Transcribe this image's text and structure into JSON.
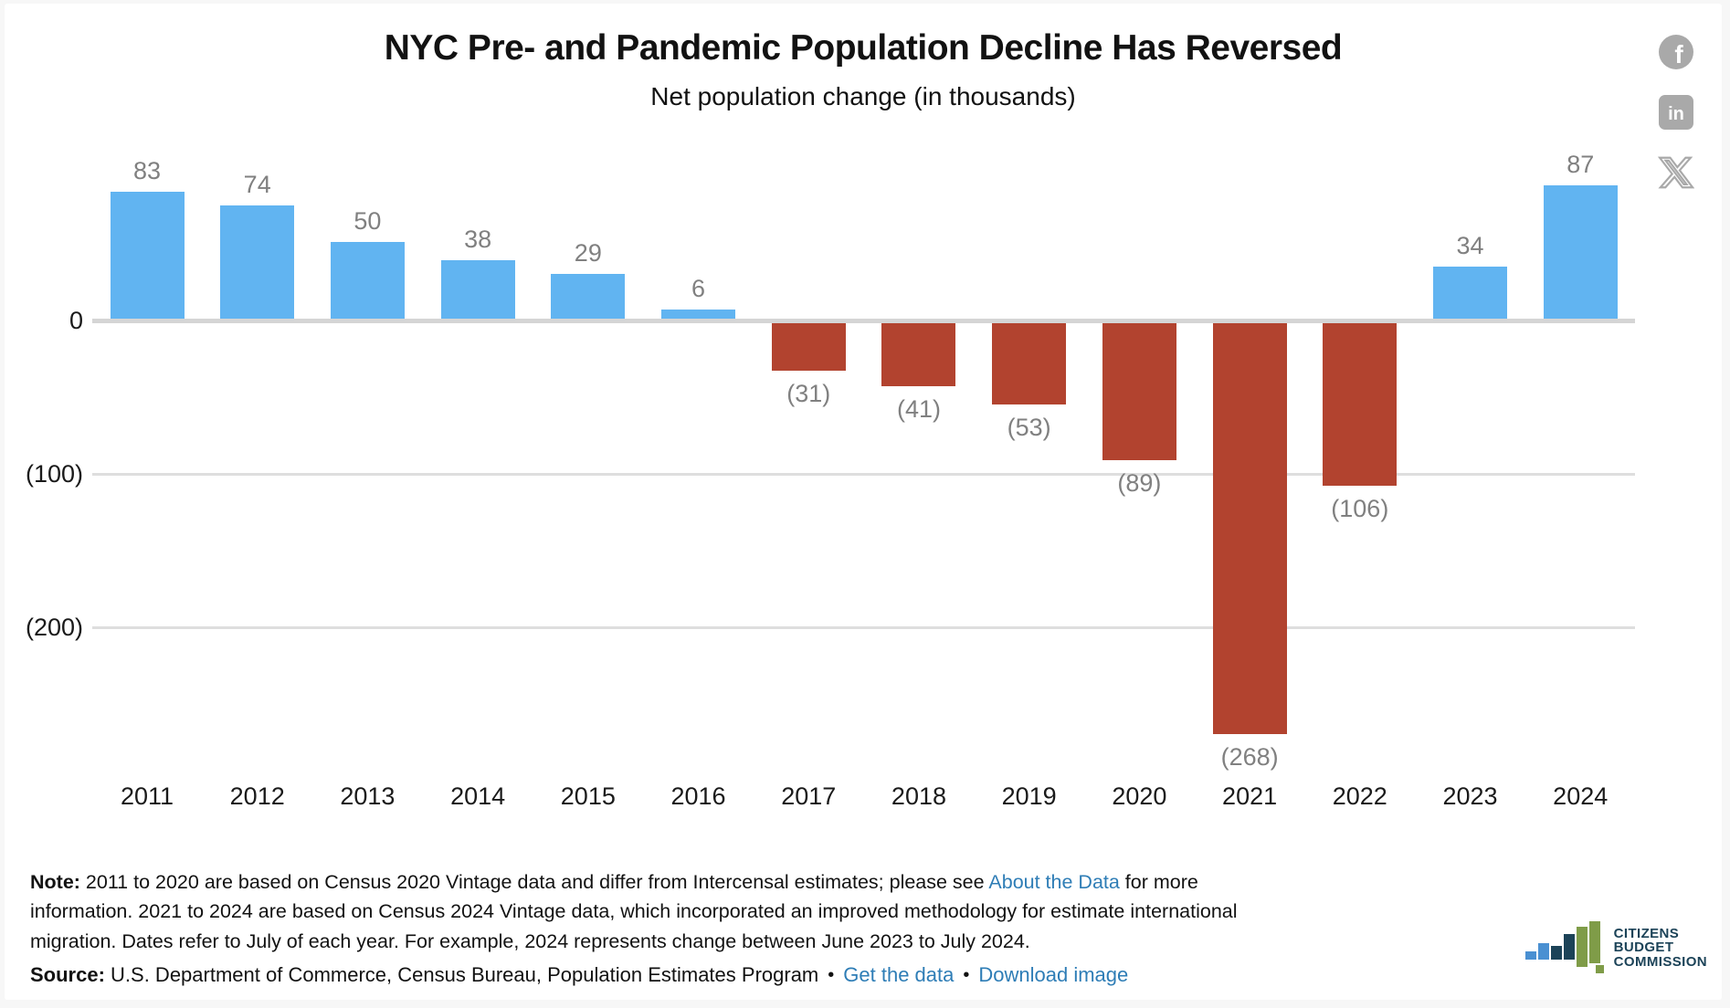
{
  "page": {
    "title": "NYC Pre- and Pandemic Population Decline Has Reversed",
    "subtitle": "Net population change (in thousands)"
  },
  "social": {
    "facebook_icon": "facebook-share-icon",
    "linkedin_icon": "linkedin-share-icon",
    "x_icon": "x-share-icon",
    "icon_color": "#a9a9a9"
  },
  "chart_data": {
    "type": "bar",
    "title": "NYC Pre- and Pandemic Population Decline Has Reversed",
    "subtitle": "Net population change (in thousands)",
    "categories": [
      "2011",
      "2012",
      "2013",
      "2014",
      "2015",
      "2016",
      "2017",
      "2018",
      "2019",
      "2020",
      "2021",
      "2022",
      "2023",
      "2024"
    ],
    "values": [
      83,
      74,
      50,
      38,
      29,
      6,
      -31,
      -41,
      -53,
      -89,
      -268,
      -106,
      34,
      87
    ],
    "labels": [
      "83",
      "74",
      "50",
      "38",
      "29",
      "6",
      "(31)",
      "(41)",
      "(53)",
      "(89)",
      "(268)",
      "(106)",
      "34",
      "87"
    ],
    "y_ticks": [
      {
        "value": 0,
        "label": "0"
      },
      {
        "value": -100,
        "label": "(100)"
      },
      {
        "value": -200,
        "label": "(200)"
      }
    ],
    "ylim": [
      -280,
      100
    ],
    "grid": true,
    "legend": false,
    "positive_color": "#61b4f1",
    "negative_color": "#b2432f",
    "value_label_color": "#808080"
  },
  "footer": {
    "note_label": "Note:",
    "note_text_1": " 2011 to 2020 are based on Census 2020 Vintage data and differ from Intercensal estimates; please see ",
    "note_link": "About the Data",
    "note_text_2": " for more information. 2021 to 2024 are based on Census 2024 Vintage data, which incorporated an improved methodology for estimate international migration. Dates refer to July of each year. For example, 2024 represents change between June 2023 to July 2024.",
    "source_label": "Source:",
    "source_text": " U.S. Department of Commerce, Census Bureau, Population Estimates Program",
    "bullet": "•",
    "link_get_data": "Get the data",
    "link_download": "Download image"
  },
  "logo": {
    "line1": "CITIZENS",
    "line2": "BUDGET",
    "line3": "COMMISSION",
    "navy": "#1c4358",
    "blue": "#4a90d2",
    "green": "#7f9c48"
  }
}
